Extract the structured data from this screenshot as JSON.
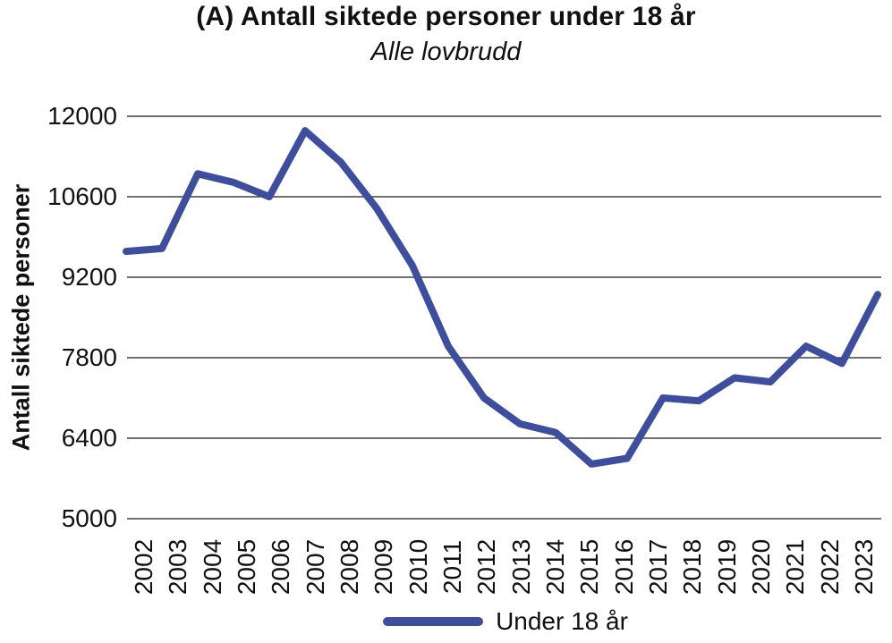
{
  "chart": {
    "title": "(A) Antall siktede personer under 18 år",
    "subtitle": "Alle lovbrudd",
    "ylabel": "Antall siktede personer",
    "legend_label": "Under 18 år",
    "colors": {
      "line": "#3E4E9F",
      "grid": "#1a1a1a",
      "text": "#111111"
    }
  },
  "chart_data": {
    "type": "line",
    "title": "(A) Antall siktede personer under 18 år",
    "subtitle": "Alle lovbrudd",
    "xlabel": "",
    "ylabel": "Antall siktede personer",
    "x": [
      "2002",
      "2003",
      "2004",
      "2005",
      "2006",
      "2007",
      "2008",
      "2009",
      "2010",
      "2011",
      "2012",
      "2013",
      "2014",
      "2015",
      "2016",
      "2017",
      "2018",
      "2019",
      "2020",
      "2021",
      "2022",
      "2023"
    ],
    "series": [
      {
        "name": "Under 18 år",
        "color": "#3E4E9F",
        "values": [
          9650,
          9700,
          11000,
          10850,
          10600,
          11750,
          11200,
          10400,
          9400,
          8000,
          7100,
          6650,
          6500,
          5950,
          6050,
          7100,
          7050,
          7450,
          7380,
          8000,
          7700,
          8900
        ]
      }
    ],
    "ylim": [
      5000,
      12000
    ],
    "yticks": [
      12000,
      10600,
      9200,
      7800,
      6400,
      5000
    ],
    "grid": "horizontal",
    "legend_position": "bottom-center"
  }
}
